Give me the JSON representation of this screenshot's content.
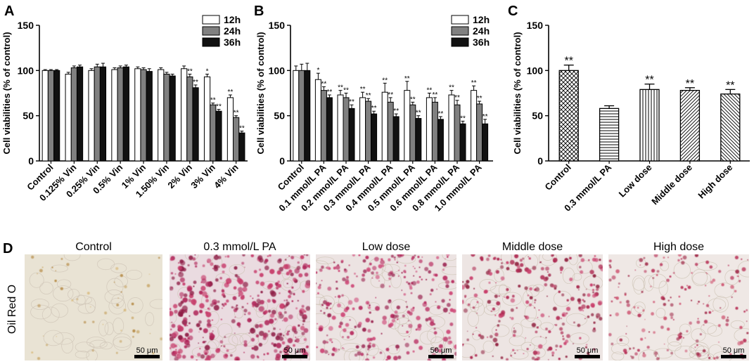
{
  "colors": {
    "white": "#ffffff",
    "gray": "#808080",
    "black": "#111111",
    "scale_bar": "#000000"
  },
  "chart_data": [
    {
      "panel": "A",
      "type": "bar",
      "ylabel": "Cell viabilities (% of control)",
      "yticks": [
        "0",
        "50",
        "100",
        "150"
      ],
      "ylim": [
        0,
        150
      ],
      "categories": [
        "Control",
        "0.125% Vin",
        "0.25% Vin",
        "0.5% Vin",
        "1% Vin",
        "1.50% Vin",
        "2% Vin",
        "3% Vin",
        "4% Vin"
      ],
      "series": [
        {
          "name": "12h",
          "fill": "white",
          "values": [
            100,
            96,
            100,
            101,
            102,
            101,
            102,
            93,
            70
          ],
          "errors": [
            1,
            2,
            2,
            2,
            2,
            2,
            3,
            3,
            3
          ],
          "sig": [
            "",
            "",
            "",
            "",
            "",
            "",
            "",
            "*",
            "**"
          ]
        },
        {
          "name": "24h",
          "fill": "gray",
          "values": [
            100,
            103,
            104,
            103,
            101,
            96,
            93,
            62,
            48
          ],
          "errors": [
            1,
            2,
            3,
            2,
            2,
            2,
            3,
            2,
            2
          ],
          "sig": [
            "",
            "",
            "",
            "",
            "",
            "",
            "**",
            "**",
            "**"
          ]
        },
        {
          "name": "36h",
          "fill": "black",
          "values": [
            100,
            104,
            104,
            104,
            99,
            94,
            81,
            55,
            31
          ],
          "errors": [
            1,
            2,
            4,
            2,
            3,
            2,
            3,
            2,
            2
          ],
          "sig": [
            "",
            "",
            "",
            "",
            "",
            "",
            "**",
            "**",
            "**"
          ]
        }
      ],
      "legend": "top-right"
    },
    {
      "panel": "B",
      "type": "bar",
      "ylabel": "Cell viabilities (% of control)",
      "yticks": [
        "0",
        "50",
        "100",
        "150"
      ],
      "ylim": [
        0,
        150
      ],
      "categories": [
        "Control",
        "0.1 mmol/L PA",
        "0.2 mmol/L PA",
        "0.3 mmol/L PA",
        "0.4 mmol/L PA",
        "0.5 mmol/L PA",
        "0.6 mmol/L PA",
        "0.8 mmol/L PA",
        "1.0  mmol/L PA"
      ],
      "series": [
        {
          "name": "12h",
          "fill": "white",
          "values": [
            100,
            90,
            73,
            70,
            76,
            78,
            70,
            73,
            78
          ],
          "errors": [
            5,
            7,
            5,
            6,
            10,
            10,
            5,
            5,
            5
          ],
          "sig": [
            "",
            "*",
            "**",
            "**",
            "**",
            "**",
            "**",
            "**",
            "**"
          ]
        },
        {
          "name": "24h",
          "fill": "gray",
          "values": [
            100,
            78,
            70,
            66,
            65,
            62,
            65,
            62,
            63
          ],
          "errors": [
            7,
            4,
            5,
            3,
            5,
            3,
            5,
            5,
            3
          ],
          "sig": [
            "",
            "**",
            "**",
            "**",
            "**",
            "**",
            "**",
            "**",
            "**"
          ]
        },
        {
          "name": "36h",
          "fill": "black",
          "values": [
            100,
            70,
            58,
            52,
            49,
            47,
            46,
            41,
            41
          ],
          "errors": [
            8,
            3,
            4,
            3,
            3,
            3,
            3,
            3,
            5
          ],
          "sig": [
            "",
            "**",
            "**",
            "**",
            "**",
            "**",
            "**",
            "**",
            "**"
          ]
        }
      ],
      "legend": "top-right"
    },
    {
      "panel": "C",
      "type": "bar",
      "ylabel": "Cell viabilities (% of control)",
      "yticks": [
        "0",
        "50",
        "100",
        "150"
      ],
      "ylim": [
        0,
        150
      ],
      "categories": [
        "Control",
        "0.3 mmol/L PA",
        "Low dose",
        "Middle dose",
        "High dose"
      ],
      "values": [
        100,
        58,
        79,
        78,
        74
      ],
      "errors": [
        6,
        3,
        6,
        3,
        5
      ],
      "patterns": [
        "crosshatch",
        "horizontal",
        "vertical",
        "diagonal-fwd",
        "diagonal-back"
      ],
      "sig": [
        "**",
        "",
        "**",
        "**",
        "**"
      ]
    }
  ],
  "panel_d": {
    "label": "D",
    "row_label": "Oil Red O",
    "scale_bar": "50 μm",
    "columns": [
      {
        "title": "Control",
        "density": 0.04,
        "palette": [
          "#c9a86a",
          "#d8b97a",
          "#b78d4a"
        ],
        "bg": "#e9e3d4"
      },
      {
        "title": "0.3 mmol/L PA",
        "density": 0.95,
        "palette": [
          "#b0285a",
          "#c73a6a",
          "#8e1b45"
        ],
        "bg": "#eadbe0"
      },
      {
        "title": "Low dose",
        "density": 0.6,
        "palette": [
          "#b82c5e",
          "#cf4a78",
          "#9a2450"
        ],
        "bg": "#ece3e2"
      },
      {
        "title": "Middle dose",
        "density": 0.55,
        "palette": [
          "#ad264f",
          "#c93e6b",
          "#91203f"
        ],
        "bg": "#ede5e3"
      },
      {
        "title": "High dose",
        "density": 0.35,
        "palette": [
          "#b72f55",
          "#cf5270",
          "#a02a49"
        ],
        "bg": "#efe8e5"
      }
    ]
  }
}
